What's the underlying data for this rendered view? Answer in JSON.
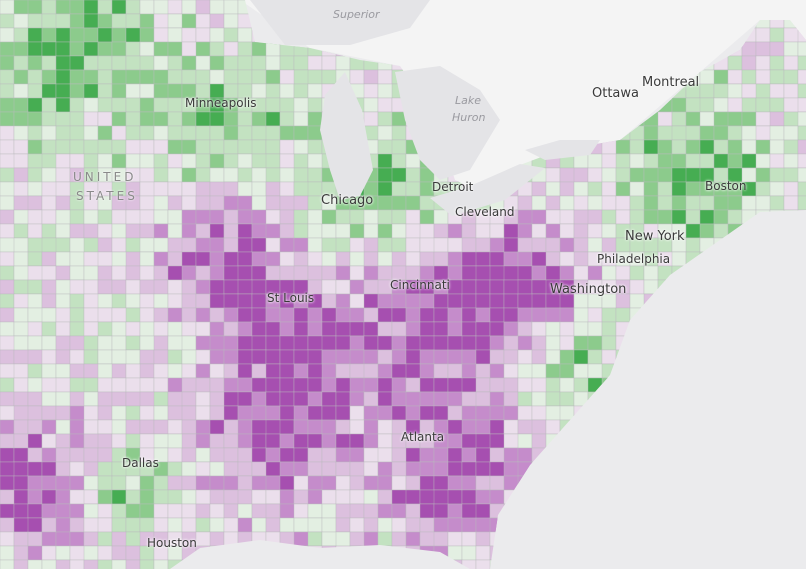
{
  "map": {
    "type": "choropleth",
    "colors": {
      "water": "#ebebed",
      "land": "#f3f3f3",
      "purple_strong": "#a64fb0",
      "purple_light": "#ead9ea",
      "green_strong": "#3aa84a",
      "green_light": "#dbeed9"
    },
    "water_labels": {
      "superior": "Superior",
      "huron_1": "Lake",
      "huron_2": "Huron"
    },
    "country_labels": {
      "us_1": "UNITED",
      "us_2": "STATES"
    },
    "cities": {
      "ottawa": "Ottawa",
      "montreal": "Montreal",
      "minneapolis": "Minneapolis",
      "detroit": "Detroit",
      "chicago": "Chicago",
      "cleveland": "Cleveland",
      "boston": "Boston",
      "new_york": "New York",
      "philadelphia": "Philadelphia",
      "washington": "Washington",
      "cincinnati": "Cincinnati",
      "st_louis": "St Louis",
      "atlanta": "Atlanta",
      "dallas": "Dallas",
      "houston": "Houston"
    }
  }
}
